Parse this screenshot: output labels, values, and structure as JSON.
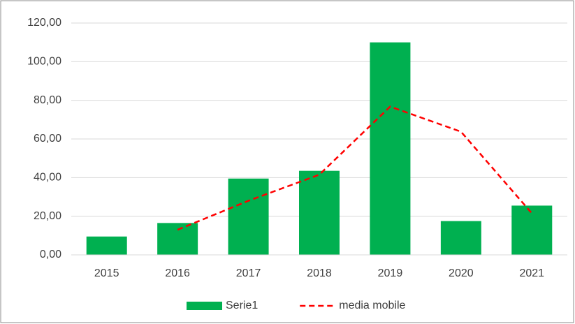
{
  "chart_data": {
    "type": "bar",
    "categories": [
      "2015",
      "2016",
      "2017",
      "2018",
      "2019",
      "2020",
      "2021"
    ],
    "series": [
      {
        "name": "Serie1",
        "type": "bar",
        "color": "#00b050",
        "values": [
          9.5,
          16.5,
          39.5,
          43.5,
          110,
          17.5,
          25.5
        ]
      },
      {
        "name": "media mobile",
        "type": "line",
        "color": "#ff0000",
        "values": [
          null,
          13,
          28,
          41.5,
          76.75,
          63.75,
          21.5
        ]
      }
    ],
    "ylim": [
      0,
      120
    ],
    "yticks": [
      {
        "value": 0,
        "label": "0,00"
      },
      {
        "value": 20,
        "label": "20,00"
      },
      {
        "value": 40,
        "label": "40,00"
      },
      {
        "value": 60,
        "label": "60,00"
      },
      {
        "value": 80,
        "label": "80,00"
      },
      {
        "value": 100,
        "label": "100,00"
      },
      {
        "value": 120,
        "label": "120,00"
      }
    ],
    "grid": true,
    "legend": "bottom"
  }
}
